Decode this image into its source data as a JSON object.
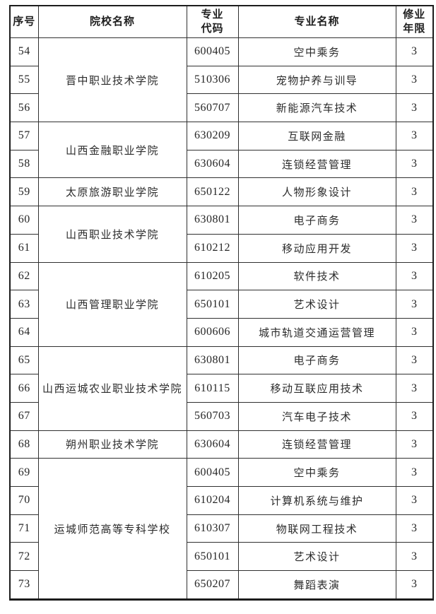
{
  "table": {
    "headers": {
      "no": "序号",
      "institution": "院校名称",
      "major_code": "专业\n代码",
      "major_name": "专业名称",
      "duration": "修业\n年限"
    },
    "groups": [
      {
        "institution": "晋中职业技术学院",
        "rows": [
          {
            "no": "54",
            "code": "600405",
            "major": "空中乘务",
            "years": "3"
          },
          {
            "no": "55",
            "code": "510306",
            "major": "宠物护养与训导",
            "years": "3"
          },
          {
            "no": "56",
            "code": "560707",
            "major": "新能源汽车技术",
            "years": "3"
          }
        ]
      },
      {
        "institution": "山西金融职业学院",
        "rows": [
          {
            "no": "57",
            "code": "630209",
            "major": "互联网金融",
            "years": "3"
          },
          {
            "no": "58",
            "code": "630604",
            "major": "连锁经营管理",
            "years": "3"
          }
        ]
      },
      {
        "institution": "太原旅游职业学院",
        "rows": [
          {
            "no": "59",
            "code": "650122",
            "major": "人物形象设计",
            "years": "3"
          }
        ]
      },
      {
        "institution": "山西职业技术学院",
        "rows": [
          {
            "no": "60",
            "code": "630801",
            "major": "电子商务",
            "years": "3"
          },
          {
            "no": "61",
            "code": "610212",
            "major": "移动应用开发",
            "years": "3"
          }
        ]
      },
      {
        "institution": "山西管理职业学院",
        "rows": [
          {
            "no": "62",
            "code": "610205",
            "major": "软件技术",
            "years": "3"
          },
          {
            "no": "63",
            "code": "650101",
            "major": "艺术设计",
            "years": "3"
          },
          {
            "no": "64",
            "code": "600606",
            "major": "城市轨道交通运营管理",
            "years": "3"
          }
        ]
      },
      {
        "institution": "山西运城农业职业技术学院",
        "rows": [
          {
            "no": "65",
            "code": "630801",
            "major": "电子商务",
            "years": "3"
          },
          {
            "no": "66",
            "code": "610115",
            "major": "移动互联应用技术",
            "years": "3"
          },
          {
            "no": "67",
            "code": "560703",
            "major": "汽车电子技术",
            "years": "3"
          }
        ]
      },
      {
        "institution": "朔州职业技术学院",
        "rows": [
          {
            "no": "68",
            "code": "630604",
            "major": "连锁经营管理",
            "years": "3"
          }
        ]
      },
      {
        "institution": "运城师范高等专科学校",
        "rows": [
          {
            "no": "69",
            "code": "600405",
            "major": "空中乘务",
            "years": "3"
          },
          {
            "no": "70",
            "code": "610204",
            "major": "计算机系统与维护",
            "years": "3"
          },
          {
            "no": "71",
            "code": "610307",
            "major": "物联网工程技术",
            "years": "3"
          },
          {
            "no": "72",
            "code": "650101",
            "major": "艺术设计",
            "years": "3"
          },
          {
            "no": "73",
            "code": "650207",
            "major": "舞蹈表演",
            "years": "3"
          }
        ]
      }
    ]
  }
}
